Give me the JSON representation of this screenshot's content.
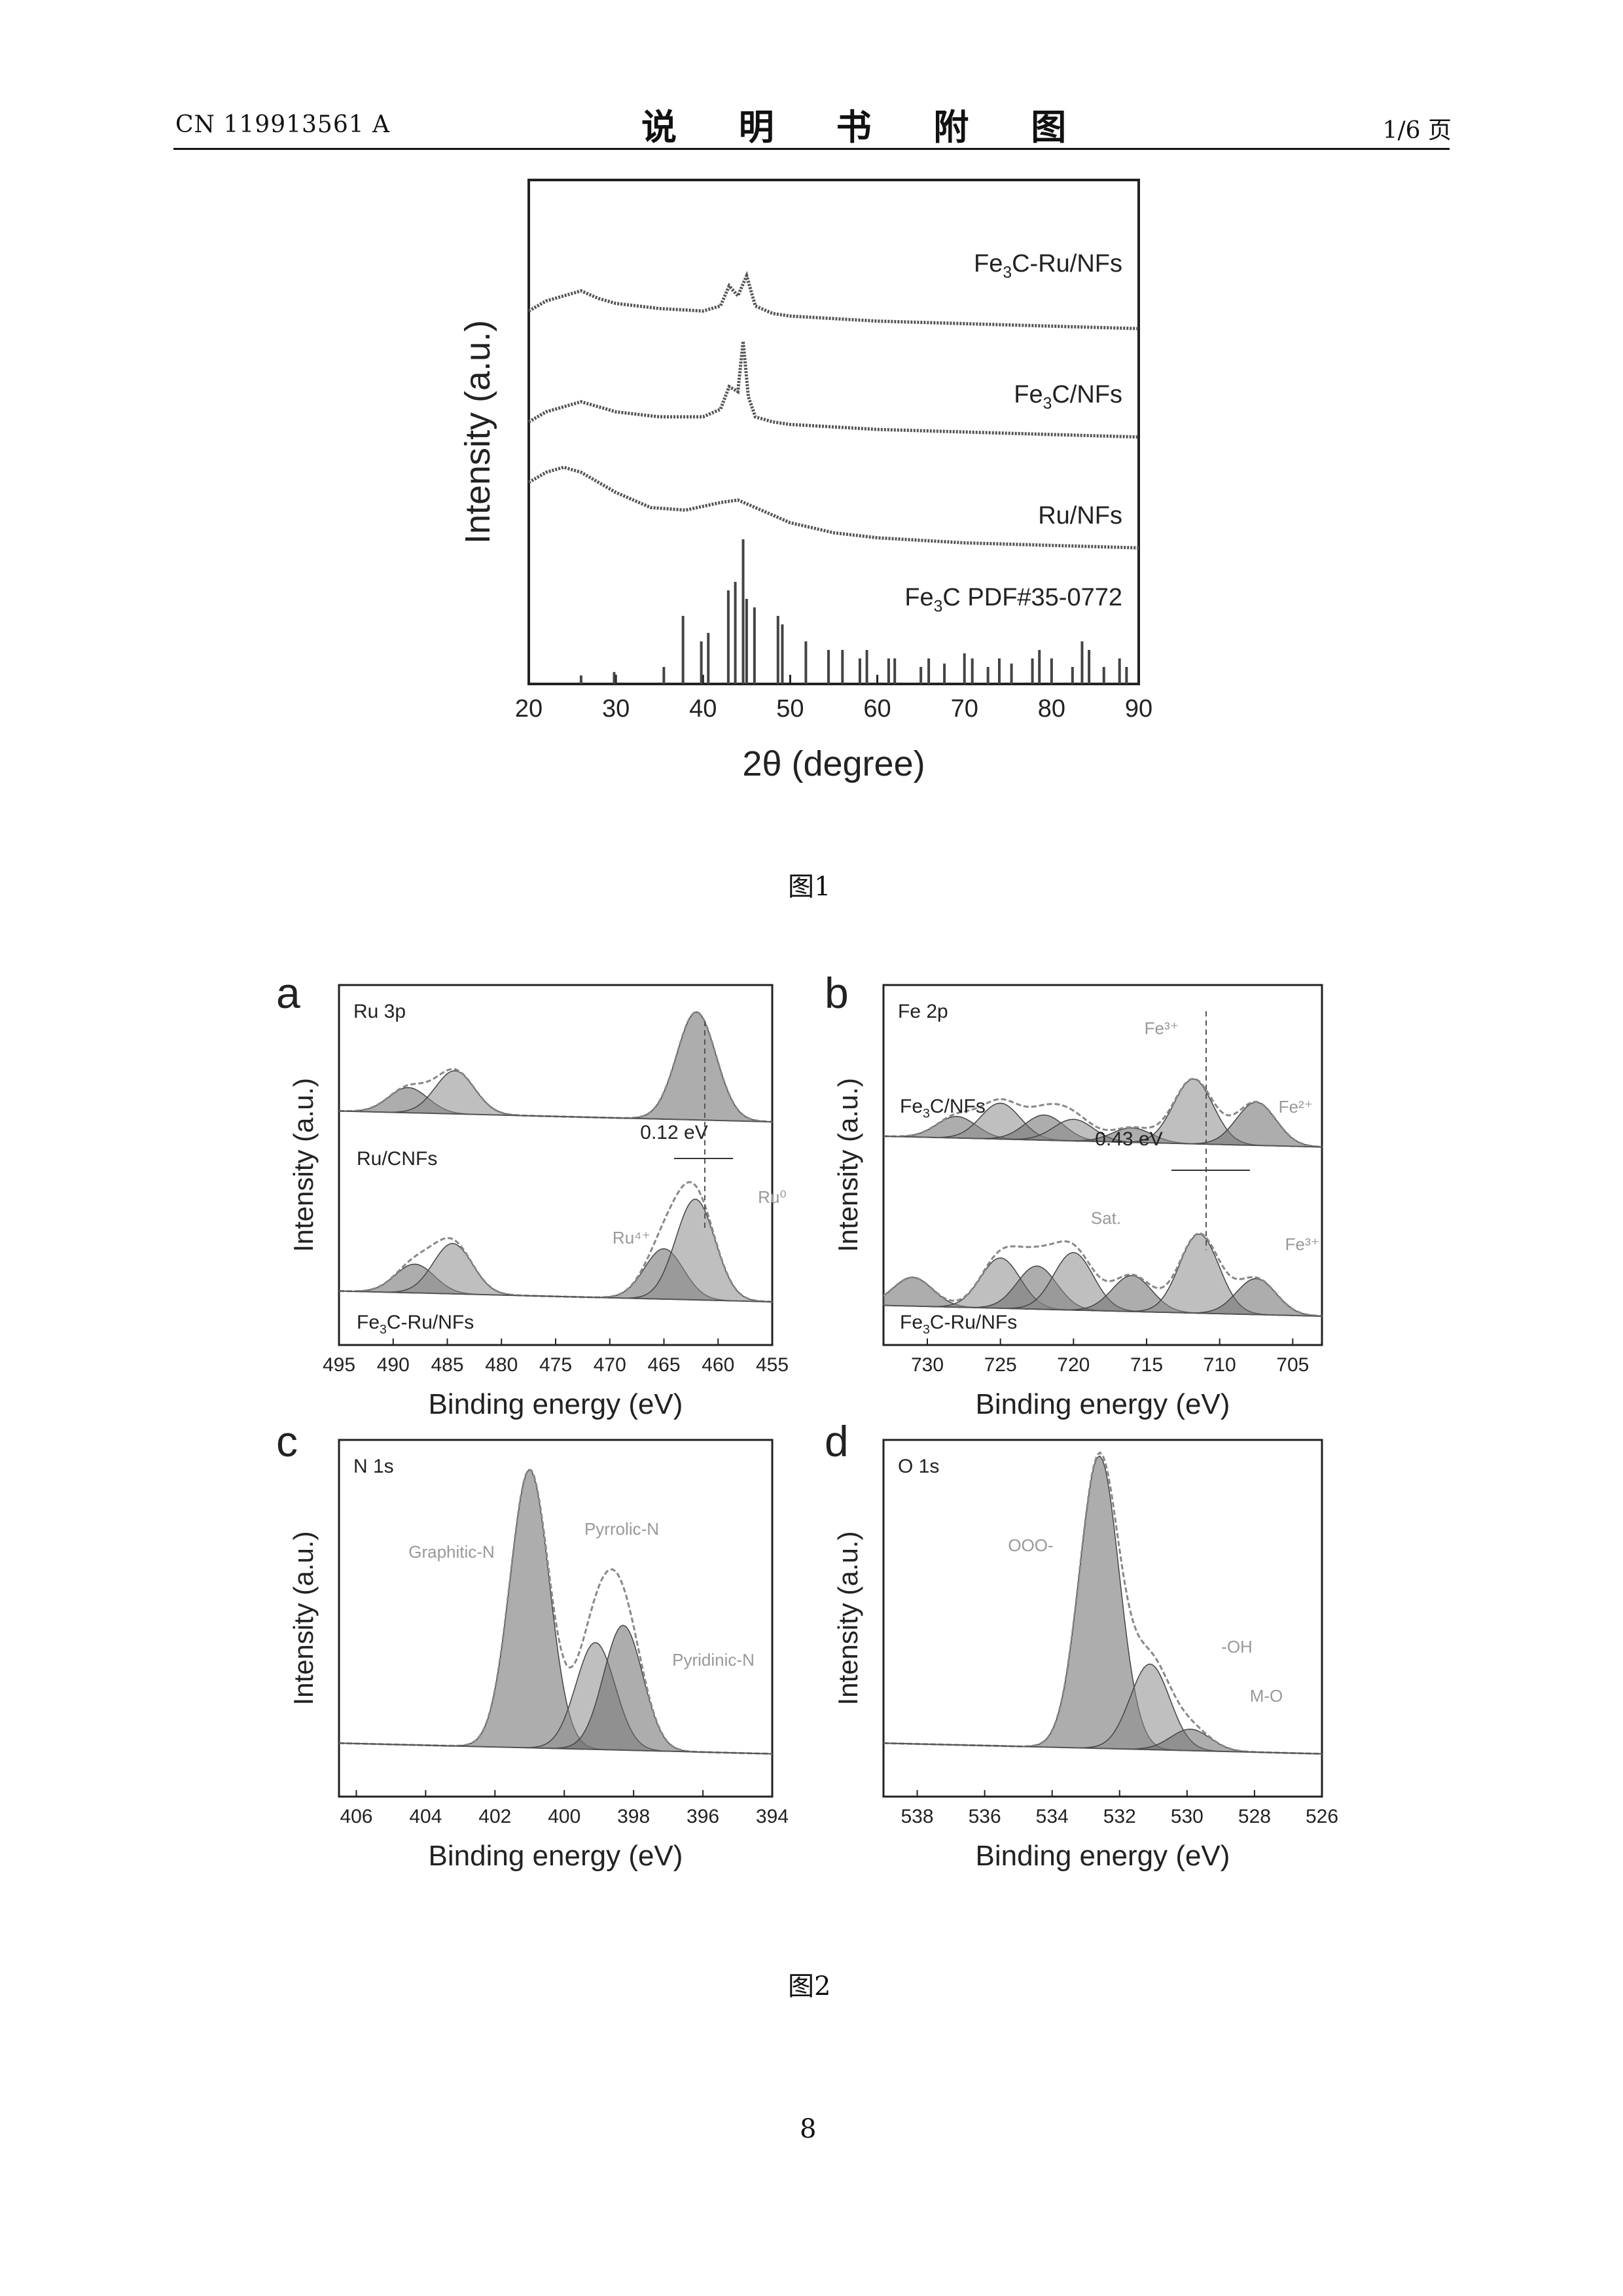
{
  "header": {
    "patent_number": "CN 119913561 A",
    "section_title": "说 明 书 附 图",
    "page_of": "1/6 页"
  },
  "figure1": {
    "caption": "图1",
    "chart_data": {
      "type": "line",
      "xlabel": "2θ (degree)",
      "ylabel": "Intensity (a.u.)",
      "xlim": [
        20,
        90
      ],
      "xticks": [
        "20",
        "30",
        "40",
        "50",
        "60",
        "70",
        "80",
        "90"
      ],
      "series": [
        {
          "name": "Fe3C-Ru/NFs",
          "sub_label": [
            "Fe",
            "3",
            "C-Ru/NFs"
          ],
          "x": [
            20,
            22,
            24,
            26,
            28,
            30,
            35,
            40,
            42,
            43,
            44,
            45,
            46,
            48,
            50,
            55,
            60,
            70,
            80,
            90
          ],
          "y": [
            0.74,
            0.76,
            0.77,
            0.78,
            0.765,
            0.755,
            0.745,
            0.74,
            0.75,
            0.79,
            0.77,
            0.81,
            0.75,
            0.735,
            0.73,
            0.725,
            0.72,
            0.715,
            0.71,
            0.705
          ]
        },
        {
          "name": "Fe3C/NFs",
          "sub_label": [
            "Fe",
            "3",
            "C/NFs"
          ],
          "x": [
            20,
            22,
            24,
            26,
            28,
            30,
            35,
            40,
            42,
            43,
            44,
            44.6,
            45.2,
            46,
            48,
            50,
            55,
            60,
            70,
            80,
            90
          ],
          "y": [
            0.52,
            0.54,
            0.55,
            0.56,
            0.55,
            0.54,
            0.53,
            0.53,
            0.545,
            0.59,
            0.58,
            0.68,
            0.57,
            0.53,
            0.52,
            0.515,
            0.51,
            0.505,
            0.5,
            0.495,
            0.49
          ]
        },
        {
          "name": "Ru/NFs",
          "sub_label": [
            "Ru/NFs",
            "",
            ""
          ],
          "x": [
            20,
            22,
            24,
            26,
            28,
            30,
            34,
            38,
            42,
            44,
            46,
            50,
            55,
            60,
            70,
            80,
            90
          ],
          "y": [
            0.4,
            0.42,
            0.43,
            0.42,
            0.4,
            0.38,
            0.35,
            0.345,
            0.36,
            0.365,
            0.35,
            0.32,
            0.3,
            0.29,
            0.28,
            0.275,
            0.27
          ]
        }
      ],
      "reference": {
        "name": "Fe3C PDF#35-0772",
        "sub_label": [
          "Fe",
          "3",
          "C PDF#35-0772"
        ],
        "x": [
          26,
          29.8,
          35.5,
          37.7,
          39.8,
          40.6,
          42.9,
          43.7,
          44.6,
          45.0,
          45.9,
          48.6,
          49.1,
          51.8,
          54.4,
          56.0,
          58.0,
          58.8,
          61.3,
          62.0,
          65.0,
          65.9,
          67.7,
          70.0,
          70.9,
          72.7,
          74.0,
          75.4,
          77.8,
          78.6,
          80.0,
          82.4,
          83.5,
          84.3,
          86.0,
          87.8,
          88.6
        ],
        "intensity": [
          0.05,
          0.07,
          0.1,
          0.4,
          0.25,
          0.3,
          0.55,
          0.6,
          0.85,
          0.5,
          0.45,
          0.4,
          0.35,
          0.25,
          0.2,
          0.2,
          0.15,
          0.2,
          0.15,
          0.15,
          0.1,
          0.15,
          0.12,
          0.18,
          0.15,
          0.1,
          0.15,
          0.12,
          0.15,
          0.2,
          0.15,
          0.1,
          0.25,
          0.2,
          0.1,
          0.15,
          0.1
        ]
      }
    }
  },
  "figure2": {
    "caption": "图2",
    "panels": [
      {
        "letter": "a",
        "chart_data": {
          "type": "line",
          "title": "Ru 3p",
          "xlabel": "Binding energy (eV)",
          "ylabel": "Intensity (a.u.)",
          "xlim": [
            495,
            455
          ],
          "xticks": [
            "495",
            "490",
            "485",
            "480",
            "475",
            "470",
            "465",
            "460",
            "455"
          ],
          "series_labels": [
            [
              "Ru/CNFs",
              "",
              ""
            ],
            [
              "Fe",
              "3",
              "C-Ru/NFs"
            ]
          ],
          "annotations": [
            {
              "text": "0.12 eV"
            },
            {
              "text": "Ru⁴⁺"
            },
            {
              "text": "Ru⁰"
            }
          ],
          "series": [
            {
              "name": "Ru/CNFs",
              "peaks_ev": [
                488.6,
                484.3,
                462.0
              ],
              "peak_heights": [
                0.07,
                0.12,
                0.3
              ],
              "offset": 0.62
            },
            {
              "name": "Fe3C-Ru/NFs",
              "peaks_ev": [
                488.0,
                484.5,
                465.0,
                462.1
              ],
              "peak_heights": [
                0.08,
                0.14,
                0.14,
                0.28
              ],
              "offset": 0.12
            }
          ]
        }
      },
      {
        "letter": "b",
        "chart_data": {
          "type": "line",
          "title": "Fe 2p",
          "xlabel": "Binding energy (eV)",
          "ylabel": "Intensity (a.u.)",
          "xlim": [
            733,
            703
          ],
          "xticks": [
            "730",
            "725",
            "720",
            "715",
            "710",
            "705"
          ],
          "series_labels": [
            [
              "Fe",
              "3",
              "C/NFs"
            ],
            [
              "Fe",
              "3",
              "C-Ru/NFs"
            ]
          ],
          "annotations": [
            {
              "text": "0.43 eV"
            },
            {
              "text": "Sat."
            },
            {
              "text": "Fe³⁺"
            },
            {
              "text": "Fe²⁺"
            },
            {
              "text": "Fe³⁺"
            }
          ],
          "series": [
            {
              "name": "Fe3C/NFs",
              "peaks_ev": [
                728,
                725,
                722,
                720,
                716,
                711.8,
                707.5
              ],
              "peak_heights": [
                0.06,
                0.1,
                0.07,
                0.06,
                0.04,
                0.18,
                0.12
              ],
              "offset": 0.55
            },
            {
              "name": "Fe3C-Ru/NFs",
              "peaks_ev": [
                731,
                725,
                722.5,
                720,
                716,
                711.4,
                707.5
              ],
              "peak_heights": [
                0.08,
                0.14,
                0.12,
                0.16,
                0.1,
                0.22,
                0.1
              ],
              "offset": 0.08
            }
          ]
        }
      },
      {
        "letter": "c",
        "chart_data": {
          "type": "line",
          "title": "N 1s",
          "xlabel": "Binding energy (eV)",
          "ylabel": "Intensity (a.u.)",
          "xlim": [
            406.5,
            394
          ],
          "xticks": [
            "406",
            "404",
            "402",
            "400",
            "398",
            "396",
            "394"
          ],
          "annotations": [
            {
              "text": "Graphitic-N"
            },
            {
              "text": "Pyrrolic-N"
            },
            {
              "text": "Pyridinic-N"
            }
          ],
          "series": [
            {
              "name": "N 1s",
              "peaks_ev": [
                401.0,
                399.1,
                398.3
              ],
              "peak_heights": [
                0.78,
                0.3,
                0.35
              ]
            }
          ]
        }
      },
      {
        "letter": "d",
        "chart_data": {
          "type": "line",
          "title": "O 1s",
          "xlabel": "Binding energy (eV)",
          "ylabel": "Intensity (a.u.)",
          "xlim": [
            539,
            526
          ],
          "xticks": [
            "538",
            "536",
            "534",
            "532",
            "530",
            "528",
            "526"
          ],
          "annotations": [
            {
              "text": "OOO-"
            },
            {
              "text": "-OH"
            },
            {
              "text": "M-O"
            }
          ],
          "series": [
            {
              "name": "O 1s",
              "peaks_ev": [
                532.6,
                531.1,
                529.9
              ],
              "peak_heights": [
                0.82,
                0.24,
                0.06
              ]
            }
          ]
        }
      }
    ]
  },
  "page_number": "8"
}
